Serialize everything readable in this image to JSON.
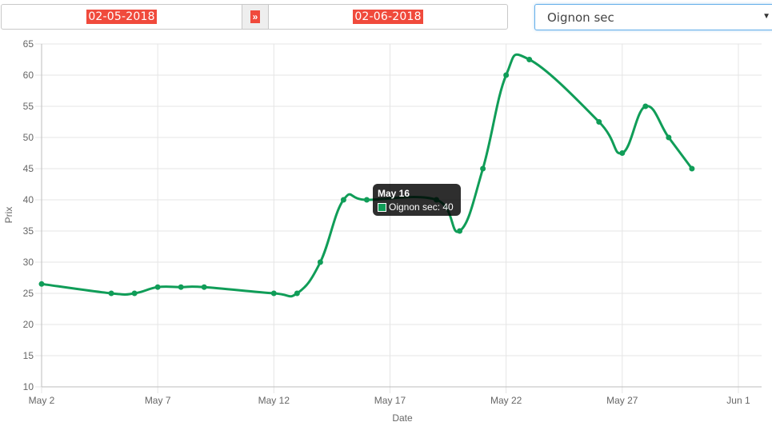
{
  "filters": {
    "date_from": "02-05-2018",
    "separator": "»",
    "date_to": "02-06-2018",
    "product_selected": "Oignon sec"
  },
  "colors": {
    "line": "#109d58",
    "date_highlight": "#f04a3c",
    "grid": "#e5e5e5"
  },
  "tooltip": {
    "title": "May 16",
    "series_label": "Oignon  sec: 40"
  },
  "chart_data": {
    "type": "line",
    "xlabel": "Date",
    "ylabel": "Prix",
    "ylim": [
      10,
      65
    ],
    "ytick_step": 5,
    "xlim": [
      "2018-05-02",
      "2018-06-02"
    ],
    "x_ticks": [
      {
        "date": "2018-05-02",
        "label": "May 2"
      },
      {
        "date": "2018-05-07",
        "label": "May 7"
      },
      {
        "date": "2018-05-12",
        "label": "May 12"
      },
      {
        "date": "2018-05-17",
        "label": "May 17"
      },
      {
        "date": "2018-05-22",
        "label": "May 22"
      },
      {
        "date": "2018-05-27",
        "label": "May 27"
      },
      {
        "date": "2018-06-01",
        "label": "Jun 1"
      }
    ],
    "grid": true,
    "series": [
      {
        "name": "Oignon  sec",
        "x": [
          "2018-05-02",
          "2018-05-05",
          "2018-05-06",
          "2018-05-07",
          "2018-05-08",
          "2018-05-09",
          "2018-05-12",
          "2018-05-13",
          "2018-05-14",
          "2018-05-15",
          "2018-05-16",
          "2018-05-19",
          "2018-05-20",
          "2018-05-21",
          "2018-05-22",
          "2018-05-23",
          "2018-05-26",
          "2018-05-27",
          "2018-05-28",
          "2018-05-29",
          "2018-05-30"
        ],
        "values": [
          26.5,
          25,
          25,
          26,
          26,
          26,
          25,
          25,
          30,
          40,
          40,
          40,
          35,
          45,
          60,
          62.5,
          52.5,
          47.5,
          55,
          50,
          45
        ]
      }
    ]
  }
}
